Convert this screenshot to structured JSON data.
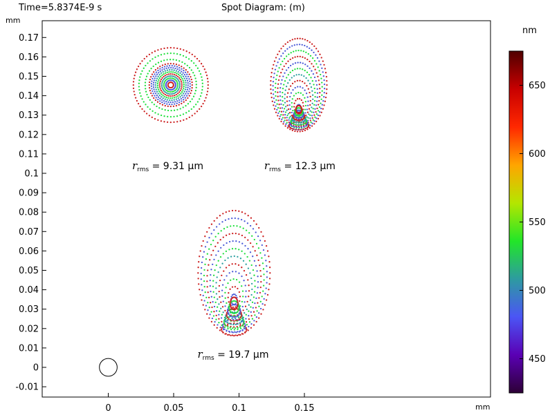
{
  "header": {
    "time": "Time=5.8374E-9 s",
    "title": "Spot Diagram: (m)"
  },
  "axis_units": {
    "x": "mm",
    "y": "mm",
    "colorbar": "nm"
  },
  "chart_data": {
    "type": "scatter",
    "title": "Spot Diagram: (m)",
    "subtitle": "Time=5.8374E-9 s",
    "xlabel": "mm",
    "ylabel": "mm",
    "xlim": [
      -0.033,
      0.19
    ],
    "ylim": [
      -0.015,
      0.177
    ],
    "xticks": [
      0,
      0.05,
      0.1,
      0.15
    ],
    "yticks": [
      -0.01,
      0,
      0.01,
      0.02,
      0.03,
      0.04,
      0.05,
      0.06,
      0.07,
      0.08,
      0.09,
      0.1,
      0.11,
      0.12,
      0.13,
      0.14,
      0.15,
      0.16,
      0.17
    ],
    "grid": false,
    "spots": [
      {
        "center": [
          0.0478,
          0.1455
        ],
        "x_half_width": 0.0188,
        "y_top": 0.1645,
        "y_bottom": 0.1265,
        "rms_label": "9.31",
        "rms_position": [
          0.0455,
          0.1035
        ]
      },
      {
        "center": [
          0.1457,
          0.1445
        ],
        "x_half_width": 0.0215,
        "y_top": 0.1695,
        "y_bottom": 0.1215,
        "rms_label": "12.3",
        "rms_position": [
          0.1465,
          0.1035
        ]
      },
      {
        "center": [
          0.0962,
          0.0485
        ],
        "x_half_width": 0.0275,
        "y_top": 0.0808,
        "y_bottom": 0.0165,
        "rms_label": "19.7",
        "rms_position": [
          0.0955,
          0.0065
        ]
      }
    ],
    "reference_circle": {
      "center": [
        0.0,
        0.0
      ],
      "radius": 0.0068
    },
    "rms_symbol": "r",
    "rms_subscript": "rms",
    "rms_unit": "µm",
    "colorbar": {
      "unit": "nm",
      "range": [
        425,
        675
      ],
      "ticks": [
        450,
        500,
        550,
        600,
        650
      ],
      "colors": [
        "#2d0036",
        "#5a00b4",
        "#4b55f5",
        "#2d9ba0",
        "#22e628",
        "#b4e600",
        "#ffa500",
        "#ff2800",
        "#c80000",
        "#500000"
      ]
    },
    "series_colors": {
      "red": "#cc1f1f",
      "blue": "#4a5ad8",
      "green": "#1fe03c",
      "teal": "#2aa0a0"
    }
  }
}
